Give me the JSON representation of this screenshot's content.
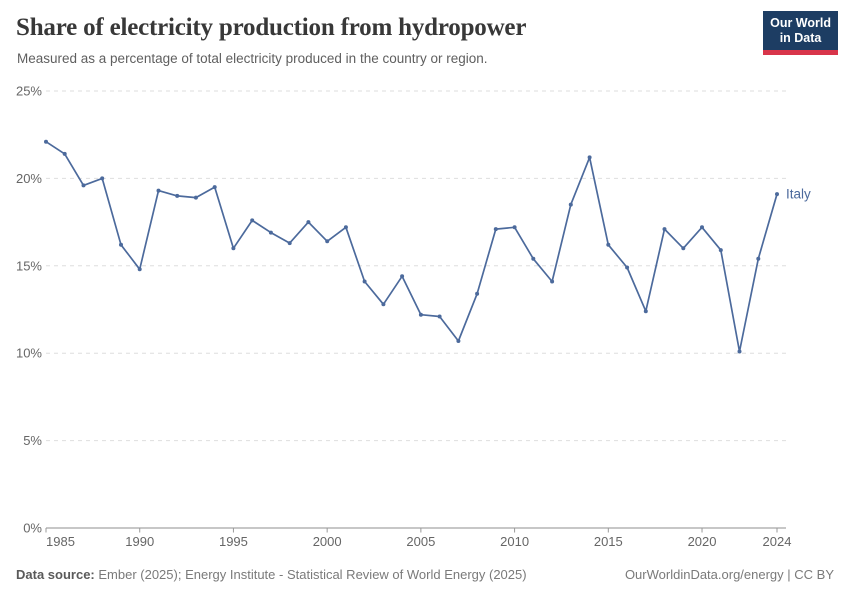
{
  "header": {
    "title": "Share of electricity production from hydropower",
    "subtitle": "Measured as a percentage of total electricity produced in the country or region.",
    "logo": {
      "line1": "Our World",
      "line2": "in Data",
      "bg_color": "#1d3d63",
      "accent_color": "#d8354a"
    }
  },
  "chart_data": {
    "type": "line",
    "title": "Share of electricity production from hydropower",
    "xlabel": "",
    "ylabel": "",
    "xlim": [
      1985,
      2024
    ],
    "ylim": [
      0,
      25
    ],
    "grid": "horizontal-dashed",
    "legend_position": "end-of-line-label",
    "x_ticks": [
      1985,
      1990,
      1995,
      2000,
      2005,
      2010,
      2015,
      2020,
      2024
    ],
    "y_ticks": [
      0,
      5,
      10,
      15,
      20,
      25
    ],
    "y_tick_suffix": "%",
    "line_color": "#4c6a9c",
    "series": [
      {
        "name": "Italy",
        "x": [
          1985,
          1986,
          1987,
          1988,
          1989,
          1990,
          1991,
          1992,
          1993,
          1994,
          1995,
          1996,
          1997,
          1998,
          1999,
          2000,
          2001,
          2002,
          2003,
          2004,
          2005,
          2006,
          2007,
          2008,
          2009,
          2010,
          2011,
          2012,
          2013,
          2014,
          2015,
          2016,
          2017,
          2018,
          2019,
          2020,
          2021,
          2022,
          2023,
          2024
        ],
        "values": [
          22.1,
          21.4,
          19.6,
          20.0,
          16.2,
          14.8,
          19.3,
          19.0,
          18.9,
          19.5,
          16.0,
          17.6,
          16.9,
          16.3,
          17.5,
          16.4,
          17.2,
          14.1,
          12.8,
          14.4,
          12.2,
          12.1,
          10.7,
          13.4,
          17.1,
          17.2,
          15.4,
          14.1,
          18.5,
          21.2,
          16.2,
          14.9,
          12.4,
          17.1,
          16.0,
          17.2,
          15.9,
          10.1,
          15.4,
          19.1
        ]
      }
    ]
  },
  "footer": {
    "source_label": "Data source:",
    "source_text": " Ember (2025); Energy Institute - Statistical Review of World Energy (2025)",
    "right_text": "OurWorldinData.org/energy | CC BY"
  }
}
